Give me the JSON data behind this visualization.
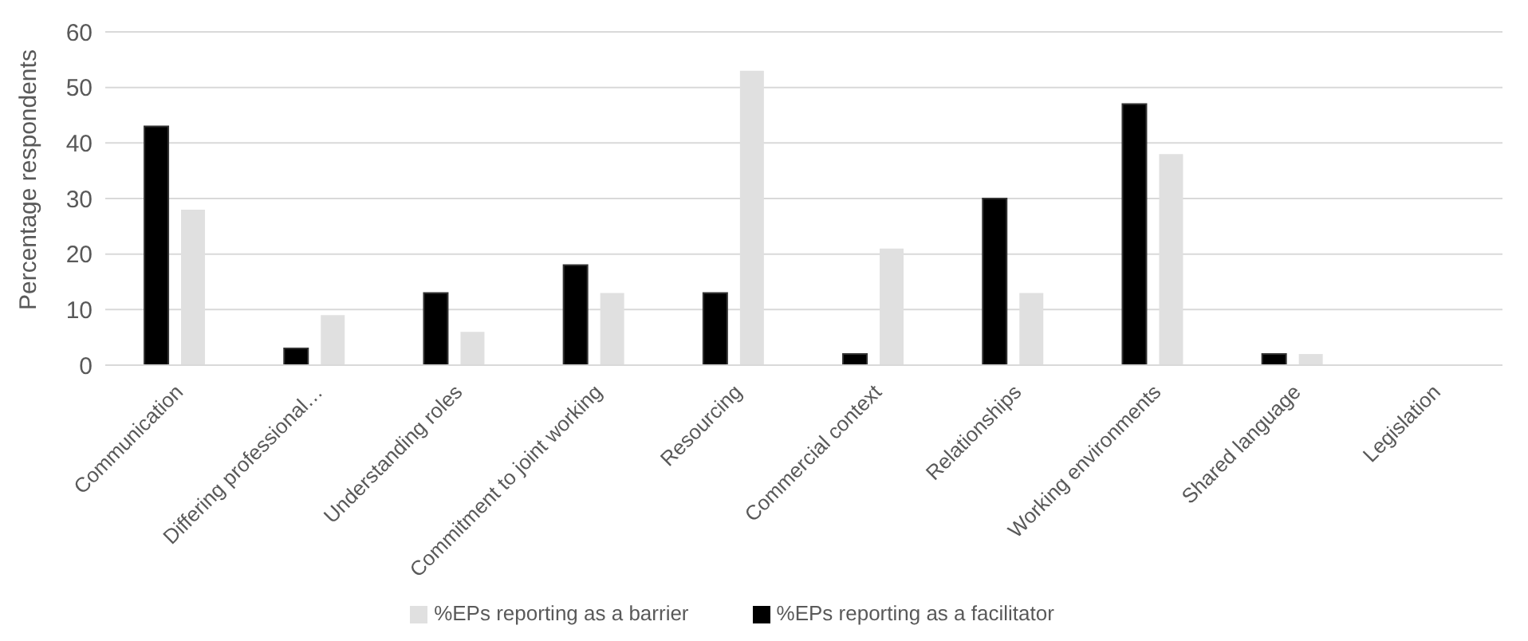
{
  "chart_data": {
    "type": "bar",
    "ylabel": "Percentage respondents",
    "categories": [
      "Communication",
      "Differing professional…",
      "Understanding roles",
      "Commitment to joint working",
      "Resourcing",
      "Commercial context",
      "Relationships",
      "Working environments",
      "Shared language",
      "Legislation"
    ],
    "series": [
      {
        "name": "%EPs reporting as a facilitator",
        "color": "#000000",
        "values": [
          43,
          3,
          13,
          18,
          13,
          2,
          30,
          47,
          2,
          0
        ]
      },
      {
        "name": "%EPs reporting as a barrier",
        "color": "#e0e0e0",
        "values": [
          28,
          9,
          6,
          13,
          53,
          21,
          13,
          38,
          2,
          0
        ]
      }
    ],
    "ylim": [
      0,
      60
    ],
    "yticks": [
      0,
      10,
      20,
      30,
      40,
      50,
      60
    ],
    "grid": "y",
    "legend": "bottom"
  }
}
